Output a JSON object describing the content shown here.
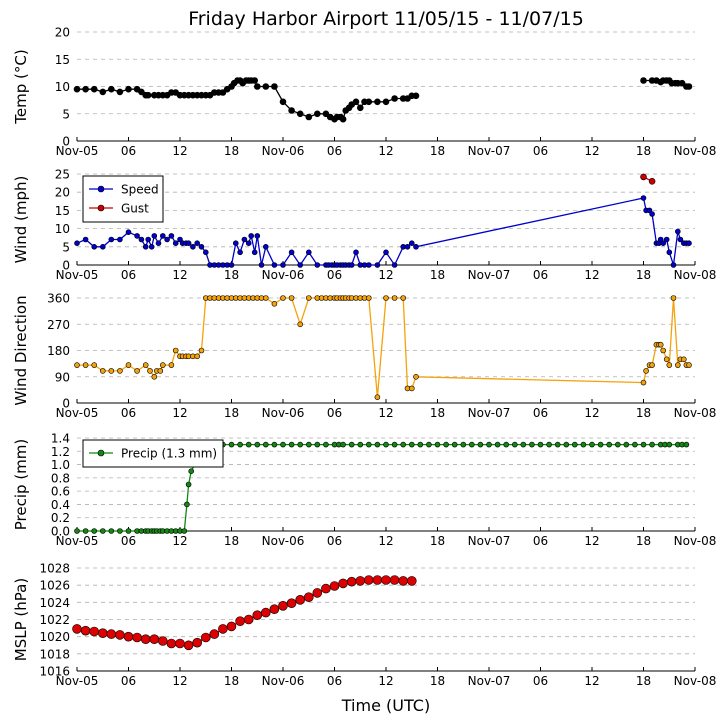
{
  "figure": {
    "title": "Friday Harbor Airport 11/05/15 - 11/07/15",
    "xlabel": "Time (UTC)",
    "x_tick_labels": [
      "Nov-05",
      "06",
      "12",
      "18",
      "Nov-06",
      "06",
      "12",
      "18",
      "Nov-07",
      "06",
      "12",
      "18",
      "Nov-08"
    ],
    "x_range_hours": [
      0,
      72
    ]
  },
  "chart_data": [
    {
      "type": "line",
      "ylabel": "Temp (°C)",
      "ylim": [
        0,
        20
      ],
      "yticks": [
        0,
        5,
        10,
        15,
        20
      ],
      "grid": true,
      "series": [
        {
          "color": "#000000",
          "marker_size": 3,
          "x": [
            0,
            1,
            2,
            3,
            4,
            5,
            6,
            7,
            7.5,
            8,
            8.3,
            9,
            9.5,
            10,
            10.5,
            11,
            11.5,
            12,
            12.5,
            13,
            13.5,
            14,
            14.5,
            15,
            15.5,
            16,
            16.5,
            17,
            17.5,
            18,
            18.3,
            18.7,
            19,
            19.3,
            19.7,
            20,
            20.3,
            20.7,
            21,
            22,
            23,
            24,
            25,
            26,
            27,
            28,
            29,
            29.5,
            30,
            30.3,
            30.7,
            31,
            31.3,
            31.7,
            32,
            32.5,
            33,
            33.5,
            34,
            35,
            36,
            37,
            38,
            38.5,
            39,
            39.5
          ],
          "y": [
            9.5,
            9.5,
            9.5,
            9,
            9.5,
            9,
            9.5,
            9.5,
            9,
            8.4,
            8.4,
            8.4,
            8.4,
            8.4,
            8.4,
            8.9,
            8.9,
            8.4,
            8.4,
            8.4,
            8.4,
            8.4,
            8.4,
            8.4,
            8.4,
            8.9,
            8.9,
            8.9,
            9.5,
            10,
            10.6,
            11.1,
            11.1,
            10.6,
            11.1,
            11.1,
            11.1,
            11.1,
            10,
            10,
            10,
            7.2,
            5.6,
            5,
            4.4,
            5,
            5,
            4.4,
            4,
            4.4,
            4.4,
            4,
            5.6,
            6.1,
            6.7,
            7.2,
            6.1,
            7.2,
            7.2,
            7.2,
            7.2,
            7.8,
            7.8,
            7.8,
            8.3,
            8.3
          ]
        },
        {
          "color": "#000000",
          "marker_size": 3,
          "x": [
            66,
            67,
            67.5,
            68,
            68.3,
            68.7,
            69,
            69.3,
            69.7,
            70,
            70.5,
            71,
            71.3
          ],
          "y": [
            11.1,
            11.1,
            11.1,
            10.8,
            11.1,
            11.1,
            11.1,
            10.6,
            10.6,
            10.6,
            10.6,
            10,
            10
          ]
        }
      ]
    },
    {
      "type": "line",
      "ylabel": "Wind (mph)",
      "ylim": [
        0,
        25
      ],
      "yticks": [
        0,
        5,
        10,
        15,
        20,
        25
      ],
      "grid": true,
      "legend": {
        "position": "top-left",
        "entries": [
          {
            "label": "Speed",
            "color": "#0000cc"
          },
          {
            "label": "Gust",
            "color": "#cc0000"
          }
        ]
      },
      "series": [
        {
          "name": "Speed",
          "color": "#0000cc",
          "marker_size": 2.5,
          "x": [
            0,
            1,
            2,
            3,
            4,
            5,
            6,
            7,
            7.5,
            8,
            8.3,
            8.7,
            9,
            9.5,
            10,
            10.5,
            11,
            11.5,
            12,
            12.3,
            12.7,
            13,
            13.5,
            14,
            14.5,
            15,
            15.5,
            16,
            16.5,
            17,
            17.5,
            18,
            18.5,
            19,
            19.5,
            20,
            20.3,
            20.7,
            21,
            21.5,
            22,
            23,
            24,
            25,
            26,
            27,
            28,
            29,
            29.3,
            29.7,
            30,
            30.3,
            30.7,
            31,
            31.3,
            31.7,
            32,
            32.5,
            33,
            33.5,
            34,
            35,
            36,
            37,
            38,
            38.5,
            39,
            39.5,
            66,
            66.3,
            66.7,
            67,
            67.5,
            67.8,
            68,
            68.3,
            68.7,
            69,
            69.5,
            70,
            70.3,
            70.7,
            71,
            71.3
          ],
          "y": [
            6,
            7,
            5,
            5,
            7,
            7,
            9,
            8,
            7,
            5,
            7,
            5,
            8,
            6,
            8,
            7,
            8,
            6,
            7,
            6,
            6,
            6,
            5,
            6,
            5,
            3.5,
            0,
            0,
            0,
            0,
            0,
            0,
            6,
            3.5,
            7,
            6,
            8,
            3.5,
            8,
            0,
            5,
            0,
            0,
            3.5,
            0,
            3.5,
            0,
            0,
            0,
            0,
            0,
            0,
            0,
            0,
            0,
            0,
            0,
            3.5,
            0,
            0,
            0,
            0,
            3.5,
            0,
            5,
            5,
            6,
            5,
            18.4,
            15,
            15,
            14,
            6,
            6,
            7,
            6,
            7,
            3.5,
            0,
            9.2,
            7,
            6,
            6,
            6
          ]
        },
        {
          "name": "Gust",
          "color": "#cc0000",
          "marker_size": 3,
          "x": [
            66,
            67
          ],
          "y": [
            24.2,
            23
          ]
        }
      ]
    },
    {
      "type": "scatter",
      "ylabel": "Wind Direction",
      "ylim": [
        0,
        360
      ],
      "yticks": [
        0,
        90,
        180,
        270,
        360
      ],
      "grid": true,
      "series": [
        {
          "color": "#f5a20a",
          "marker_size": 2.5,
          "x": [
            0,
            1,
            2,
            3,
            4,
            5,
            6,
            7,
            8,
            8.5,
            9,
            9.3,
            9.7,
            10,
            11,
            11.5,
            12,
            12.3,
            12.7,
            13,
            13.5,
            14,
            14.5,
            15,
            15.5,
            16,
            16.5,
            17,
            17.5,
            18,
            18.5,
            19,
            19.5,
            20,
            20.5,
            21,
            21.5,
            22,
            23,
            24,
            25,
            26,
            27,
            28,
            28.5,
            29,
            29.5,
            30,
            30.3,
            30.7,
            31,
            31.3,
            31.7,
            32,
            32.5,
            33,
            33.5,
            34,
            35,
            36,
            37,
            38,
            38.5,
            39,
            39.5,
            66,
            66.3,
            66.7,
            67,
            67.5,
            67.8,
            68,
            68.3,
            68.7,
            69,
            69.5,
            70,
            70.3,
            70.7,
            71,
            71.3
          ],
          "y": [
            130,
            130,
            130,
            110,
            110,
            110,
            130,
            110,
            130,
            110,
            90,
            110,
            110,
            130,
            130,
            180,
            160,
            160,
            160,
            160,
            160,
            160,
            180,
            360,
            360,
            360,
            360,
            360,
            360,
            360,
            360,
            360,
            360,
            360,
            360,
            360,
            360,
            360,
            340,
            360,
            360,
            270,
            360,
            360,
            360,
            360,
            360,
            360,
            360,
            360,
            360,
            360,
            360,
            360,
            360,
            360,
            360,
            360,
            20,
            360,
            360,
            360,
            50,
            50,
            90,
            70,
            110,
            130,
            130,
            200,
            200,
            200,
            180,
            150,
            130,
            360,
            130,
            150,
            150,
            130,
            130
          ]
        }
      ]
    },
    {
      "type": "line",
      "ylabel": "Precip (mm)",
      "ylim": [
        0,
        1.4
      ],
      "yticks": [
        0.0,
        0.2,
        0.4,
        0.6,
        0.8,
        1.0,
        1.2,
        1.4
      ],
      "grid": true,
      "legend": {
        "position": "top-left",
        "entries": [
          {
            "label": "Precip (1.3 mm)",
            "color": "#118811"
          }
        ]
      },
      "series": [
        {
          "name": "Precip (1.3 mm)",
          "color": "#118811",
          "marker_size": 2.5,
          "x": [
            0,
            1,
            2,
            3,
            4,
            5,
            6,
            7,
            7.5,
            8,
            8.3,
            8.7,
            9,
            9.3,
            9.7,
            10,
            10.5,
            11,
            11.5,
            12,
            12.5,
            12.8,
            13,
            13.3,
            13.7,
            14,
            15,
            16,
            17,
            18,
            19,
            20,
            21,
            22,
            23,
            24,
            25,
            26,
            27,
            28,
            29,
            30,
            30.5,
            31,
            32,
            33,
            34,
            35,
            36,
            37,
            38,
            39,
            40,
            41,
            42,
            43,
            44,
            45,
            46,
            47,
            48,
            49,
            50,
            51,
            52,
            53,
            54,
            55,
            56,
            57,
            58,
            59,
            60,
            61,
            62,
            63,
            64,
            65,
            66,
            67,
            68,
            68.5,
            69,
            70,
            70.5,
            71
          ],
          "y": [
            0,
            0,
            0,
            0,
            0,
            0,
            0,
            0,
            0,
            0,
            0,
            0,
            0,
            0,
            0,
            0,
            0,
            0,
            0,
            0,
            0,
            0.4,
            0.7,
            0.9,
            1.0,
            1.3,
            1.3,
            1.3,
            1.3,
            1.3,
            1.3,
            1.3,
            1.3,
            1.3,
            1.3,
            1.3,
            1.3,
            1.3,
            1.3,
            1.3,
            1.3,
            1.3,
            1.3,
            1.3,
            1.3,
            1.3,
            1.3,
            1.3,
            1.3,
            1.3,
            1.3,
            1.3,
            1.3,
            1.3,
            1.3,
            1.3,
            1.3,
            1.3,
            1.3,
            1.3,
            1.3,
            1.3,
            1.3,
            1.3,
            1.3,
            1.3,
            1.3,
            1.3,
            1.3,
            1.3,
            1.3,
            1.3,
            1.3,
            1.3,
            1.3,
            1.3,
            1.3,
            1.3,
            1.3,
            1.3,
            1.3,
            1.3,
            1.3,
            1.3,
            1.3,
            1.3
          ]
        }
      ]
    },
    {
      "type": "line",
      "ylabel": "MSLP (hPa)",
      "ylim": [
        1016,
        1028
      ],
      "yticks": [
        1016,
        1018,
        1020,
        1022,
        1024,
        1026,
        1028
      ],
      "grid": true,
      "series": [
        {
          "color": "#dd0000",
          "marker_size": 4.5,
          "x": [
            0,
            1,
            2,
            3,
            4,
            5,
            6,
            7,
            8,
            9,
            10,
            11,
            12,
            13,
            14,
            15,
            16,
            17,
            18,
            19,
            20,
            21,
            22,
            23,
            24,
            25,
            26,
            27,
            28,
            29,
            30,
            31,
            32,
            33,
            34,
            35,
            36,
            37,
            38,
            39
          ],
          "y": [
            1020.9,
            1020.7,
            1020.6,
            1020.4,
            1020.3,
            1020.2,
            1020.0,
            1019.9,
            1019.7,
            1019.7,
            1019.5,
            1019.2,
            1019.2,
            1019.0,
            1019.3,
            1019.9,
            1020.3,
            1020.9,
            1021.2,
            1021.8,
            1022.0,
            1022.5,
            1022.8,
            1023.2,
            1023.6,
            1023.9,
            1024.3,
            1024.6,
            1025.1,
            1025.6,
            1025.9,
            1026.2,
            1026.4,
            1026.5,
            1026.6,
            1026.6,
            1026.6,
            1026.6,
            1026.5,
            1026.5
          ]
        }
      ]
    }
  ]
}
